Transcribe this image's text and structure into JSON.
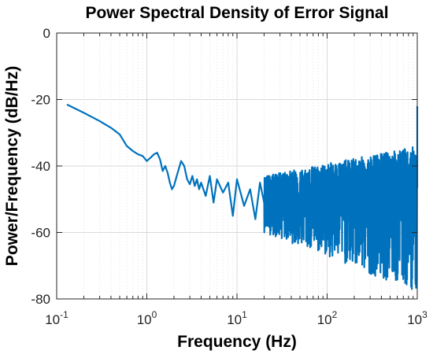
{
  "chart_data": {
    "type": "line",
    "title": "Power Spectral Density of Error Signal",
    "xlabel": "Frequency (Hz)",
    "ylabel": "Power/Frequency (dB/Hz)",
    "xscale": "log",
    "xlim": [
      0.1,
      1000
    ],
    "ylim": [
      -80,
      0
    ],
    "x_ticks": [
      {
        "base": "10",
        "exp": "-1"
      },
      {
        "base": "10",
        "exp": "0"
      },
      {
        "base": "10",
        "exp": "1"
      },
      {
        "base": "10",
        "exp": "2"
      },
      {
        "base": "10",
        "exp": "3"
      }
    ],
    "y_ticks": [
      "0",
      "-20",
      "-40",
      "-60",
      "-80"
    ],
    "grid": true,
    "line_color": "#0072bd",
    "series": [
      {
        "x": [
          0.13,
          0.2,
          0.3,
          0.4,
          0.5,
          0.6,
          0.7,
          0.8,
          0.9,
          1.0,
          1.1,
          1.2,
          1.3,
          1.4,
          1.5,
          1.6,
          1.7,
          1.8,
          1.9,
          2.0,
          2.2,
          2.4,
          2.6,
          2.8,
          3.0,
          3.2,
          3.4,
          3.6,
          3.8,
          4.0,
          4.5,
          5.0,
          5.5,
          6.0,
          7.0,
          8.0,
          9.0,
          10.0,
          12.0,
          14.0,
          16.0,
          18.0,
          20.0
        ],
        "y": [
          -21.5,
          -24.0,
          -26.5,
          -28.5,
          -30.5,
          -34.0,
          -35.5,
          -36.5,
          -37.0,
          -38.5,
          -37.5,
          -36.5,
          -36.0,
          -38.0,
          -41.5,
          -40.0,
          -42.0,
          -45.0,
          -47.0,
          -46.0,
          -42.0,
          -38.5,
          -40.0,
          -44.0,
          -45.5,
          -43.0,
          -46.0,
          -44.0,
          -47.0,
          -45.0,
          -49.0,
          -43.0,
          -51.0,
          -44.0,
          -48.0,
          -45.0,
          -55.0,
          -44.0,
          -52.0,
          -47.0,
          -56.0,
          -45.0,
          -51.0
        ]
      }
    ],
    "noise_region": {
      "x_from": 20,
      "x_to": 1000,
      "upper_envelope_start": -43,
      "upper_envelope_end": -34,
      "lower_envelope_start": -60,
      "lower_envelope_end": -78,
      "center_start": -50,
      "center_end": -52
    },
    "end_spike": {
      "x": 1000,
      "y": -22
    }
  }
}
